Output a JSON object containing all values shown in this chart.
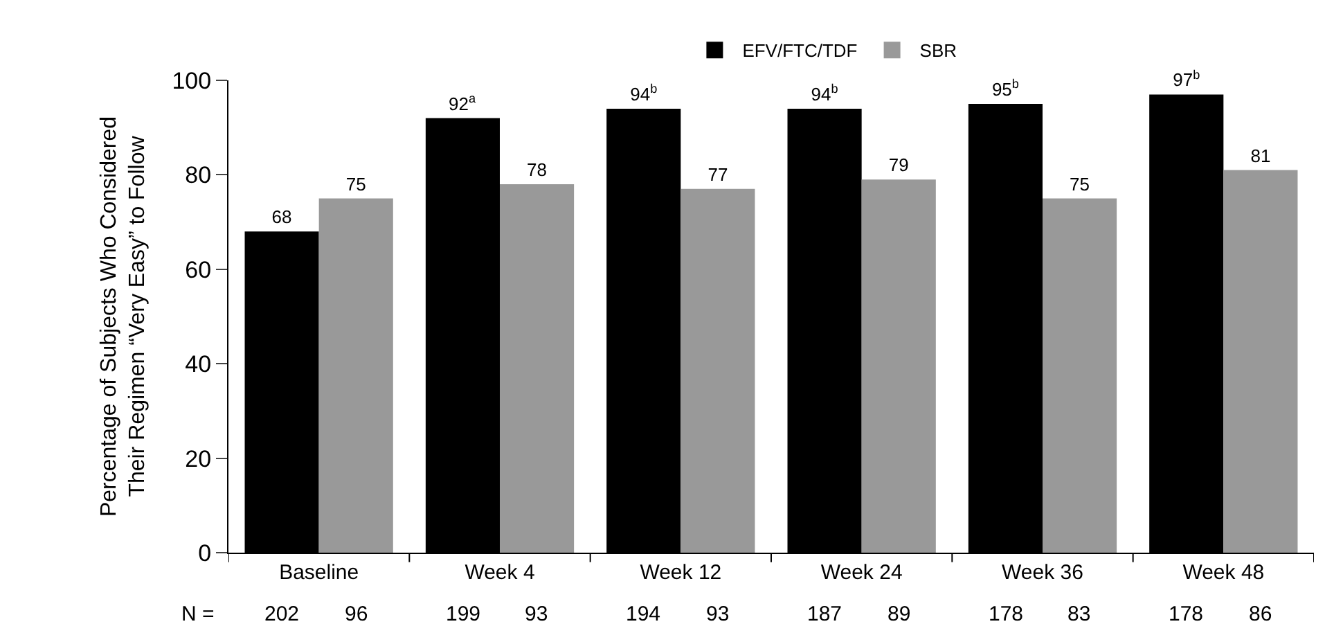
{
  "chart_data": {
    "type": "bar",
    "categories": [
      "Baseline",
      "Week 4",
      "Week 12",
      "Week 24",
      "Week 36",
      "Week 48"
    ],
    "ylabel": "Percentage of Subjects Who Considered\nTheir Regimen “Very Easy” to Follow",
    "ylim": [
      0,
      100
    ],
    "yticks": [
      0,
      20,
      40,
      60,
      80,
      100
    ],
    "legend": "top",
    "series": [
      {
        "name": "EFV/FTC/TDF",
        "color": "#000000",
        "values": [
          68,
          92,
          94,
          94,
          95,
          97
        ],
        "value_labels": [
          "68",
          "92$^{a}$",
          "94$^{b}$",
          "94$^{b}$",
          "95$^{b}$",
          "97$^{b}$"
        ]
      },
      {
        "name": "SBR",
        "color": "#999999",
        "values": [
          75,
          78,
          77,
          79,
          75,
          81
        ],
        "value_labels": [
          "75",
          "78",
          "77",
          "79",
          "75",
          "81"
        ]
      }
    ],
    "annotations": [
      "N =",
      "202",
      "96",
      "199",
      "93",
      "194",
      "93",
      "187",
      "89",
      "178",
      "83",
      "178",
      "86"
    ]
  }
}
